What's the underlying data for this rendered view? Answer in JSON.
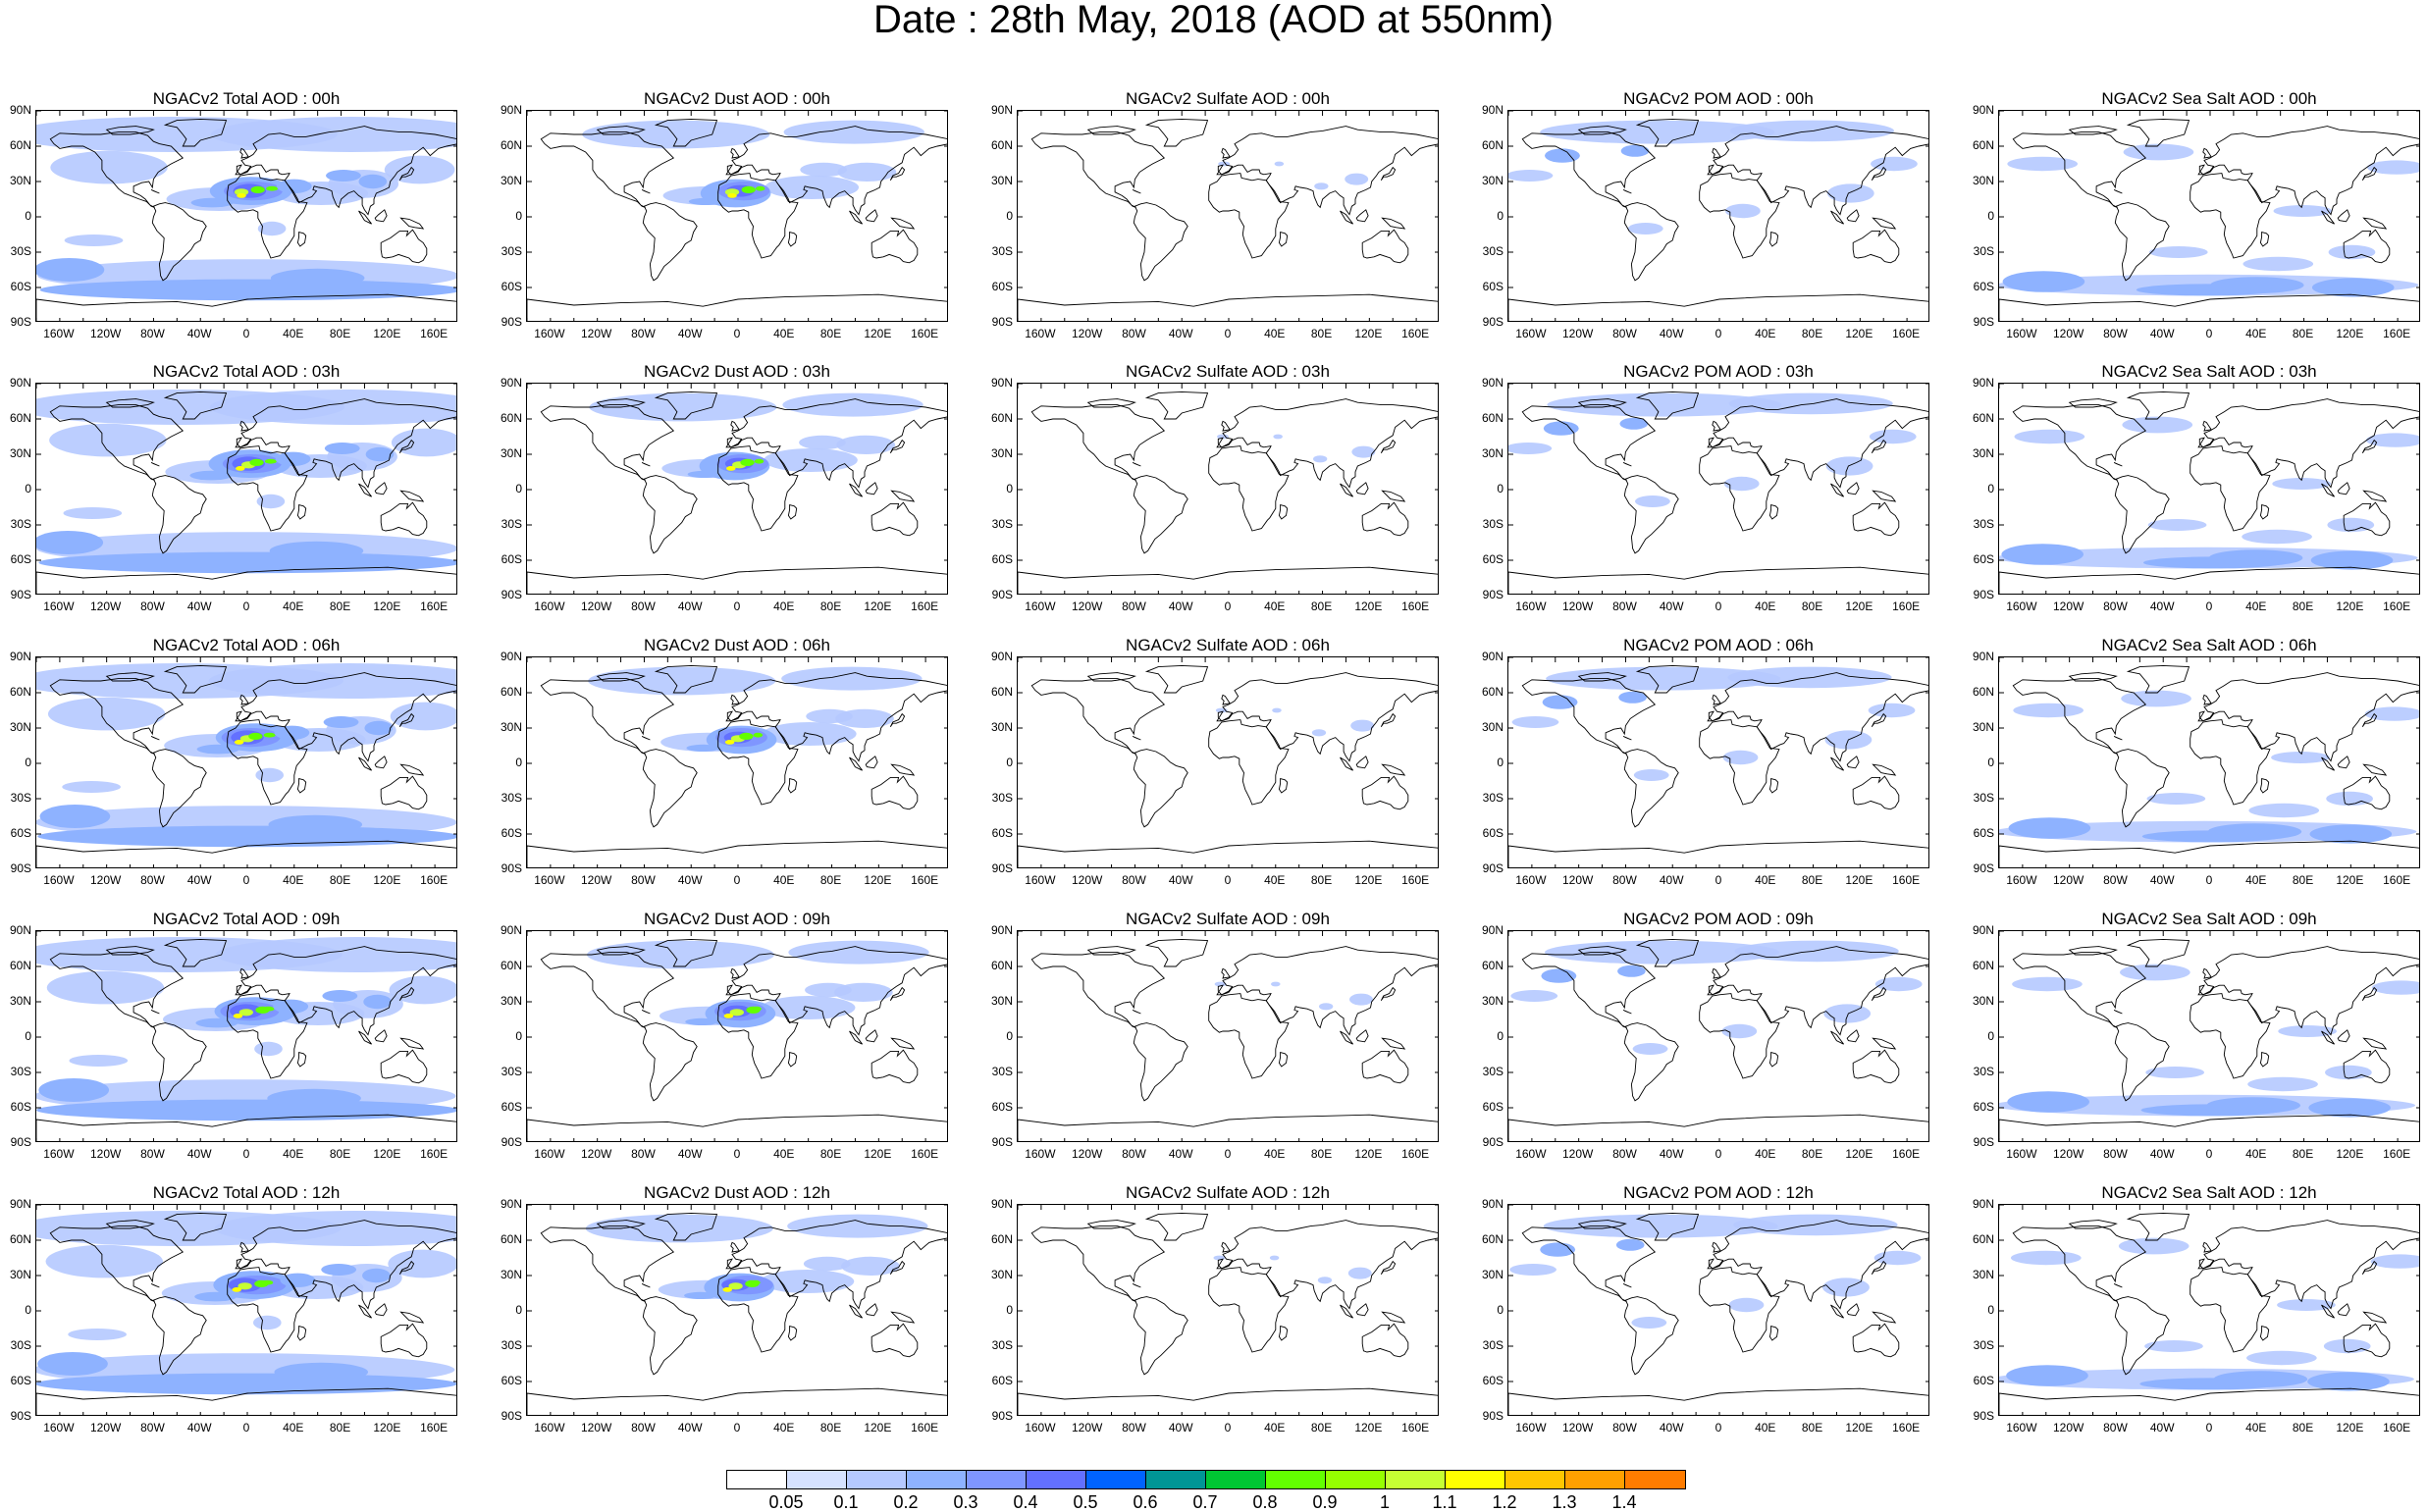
{
  "title": "Date : 28th May, 2018 (AOD at 550nm)",
  "lat_ticks": [
    "90N",
    "60N",
    "30N",
    "0",
    "30S",
    "60S",
    "90S"
  ],
  "lon_ticks": [
    "160W",
    "120W",
    "80W",
    "40W",
    "0",
    "40E",
    "80E",
    "120E",
    "160E"
  ],
  "panels": [
    [
      "NGACv2 Total AOD : 00h",
      "NGACv2 Dust AOD : 00h",
      "NGACv2 Sulfate AOD : 00h",
      "NGACv2 POM AOD : 00h",
      "NGACv2 Sea Salt AOD : 00h"
    ],
    [
      "NGACv2 Total AOD : 03h",
      "NGACv2 Dust AOD : 03h",
      "NGACv2 Sulfate AOD : 03h",
      "NGACv2 POM AOD : 03h",
      "NGACv2 Sea Salt AOD : 03h"
    ],
    [
      "NGACv2 Total AOD : 06h",
      "NGACv2 Dust AOD : 06h",
      "NGACv2 Sulfate AOD : 06h",
      "NGACv2 POM AOD : 06h",
      "NGACv2 Sea Salt AOD : 06h"
    ],
    [
      "NGACv2 Total AOD : 09h",
      "NGACv2 Dust AOD : 09h",
      "NGACv2 Sulfate AOD : 09h",
      "NGACv2 POM AOD : 09h",
      "NGACv2 Sea Salt  AOD : 09h"
    ],
    [
      "NGACv2 Total AOD : 12h",
      "NGACv2 Dust AOD : 12h",
      "NGACv2 Sulfate AOD : 12h",
      "NGACv2 POM  AOD : 12h",
      "NGACv2 Sea Salt AOD : 12h"
    ]
  ],
  "colorbar": {
    "labels": [
      "0.05",
      "0.1",
      "0.2",
      "0.3",
      "0.4",
      "0.5",
      "0.6",
      "0.7",
      "0.8",
      "0.9",
      "1",
      "1.1",
      "1.2",
      "1.3",
      "1.4"
    ],
    "colors": [
      "#ffffff",
      "#d6e2ff",
      "#b5c9ff",
      "#8eb2ff",
      "#7f96ff",
      "#6370ff",
      "#0063ff",
      "#009696",
      "#00c633",
      "#63ff00",
      "#96ff00",
      "#c6ff33",
      "#ffff00",
      "#ffc600",
      "#ffa000",
      "#ff7c00",
      "#ff1900"
    ]
  }
}
